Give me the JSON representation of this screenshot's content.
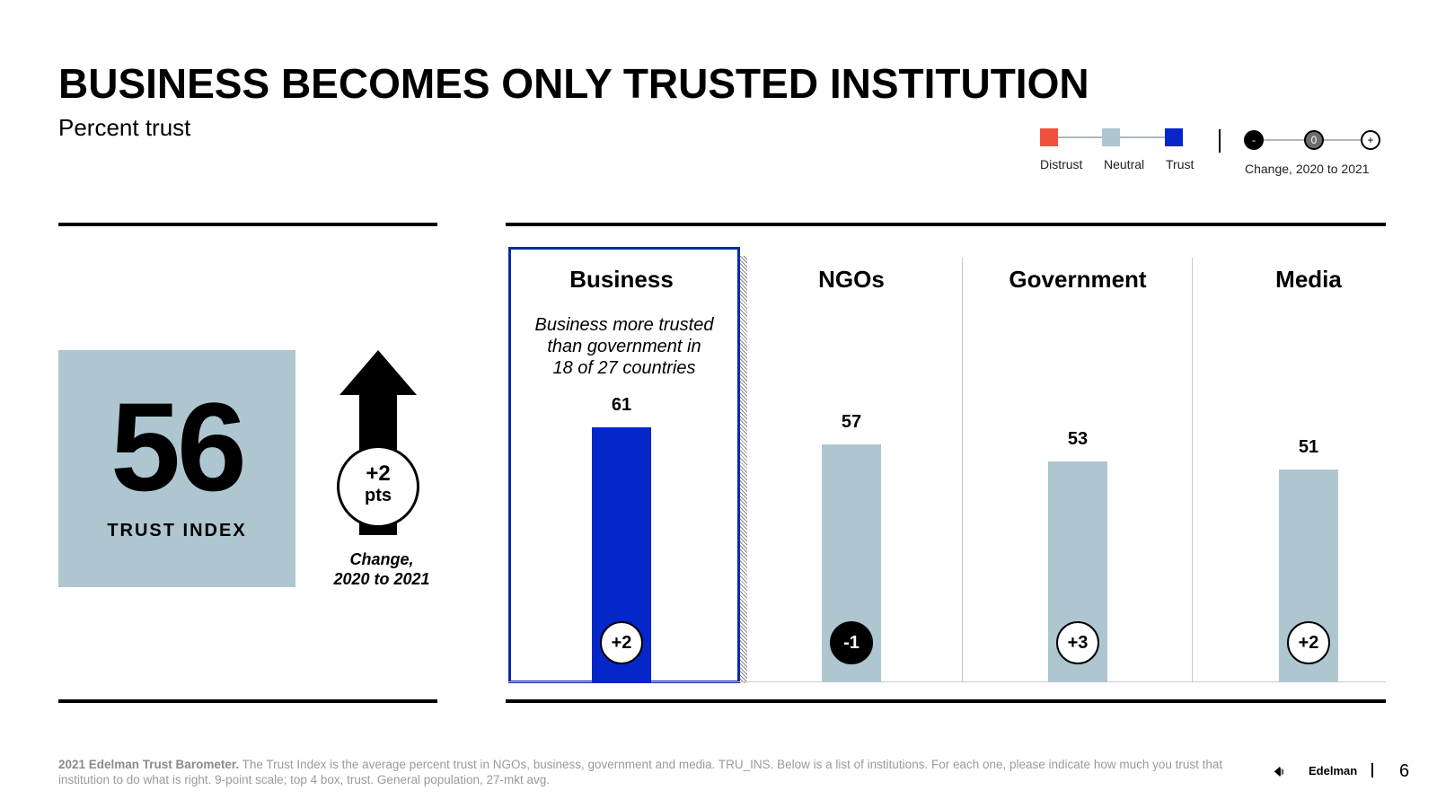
{
  "title": "BUSINESS BECOMES ONLY TRUSTED INSTITUTION",
  "subtitle": "Percent trust",
  "legend": {
    "items": [
      {
        "label": "Distrust",
        "color": "#f0503c"
      },
      {
        "label": "Neutral",
        "color": "#adc6d0"
      },
      {
        "label": "Trust",
        "color": "#0526c8"
      }
    ],
    "change_symbols": [
      "-",
      "0",
      "+"
    ],
    "change_label": "Change, 2020 to 2021"
  },
  "trust_index": {
    "value": "56",
    "label": "TRUST INDEX",
    "change_value": "+2",
    "change_unit": "pts",
    "change_caption_line1": "Change,",
    "change_caption_line2": "2020 to 2021"
  },
  "annotation": {
    "line1": "Business more trusted",
    "line2": "than government in",
    "line3": "18 of 27 countries"
  },
  "chart_data": {
    "type": "bar",
    "categories": [
      "Business",
      "NGOs",
      "Government",
      "Media"
    ],
    "values": [
      61,
      57,
      53,
      51
    ],
    "changes": [
      "+2",
      "-1",
      "+3",
      "+2"
    ],
    "bar_colors": [
      "#0526c8",
      "#adc6d0",
      "#adc6d0",
      "#adc6d0"
    ],
    "change_styles": [
      "positive",
      "negative",
      "positive",
      "positive"
    ],
    "ylim": [
      0,
      100
    ]
  },
  "footer": {
    "source_bold": "2021 Edelman Trust Barometer.",
    "source_text": " The Trust Index is the average percent trust in NGOs, business, government and media. TRU_INS. Below is a list of institutions. For each one, please indicate how much you trust that institution to do what is right. 9-point scale; top 4 box, trust. General population, 27-mkt avg.",
    "logo_text": "Edelman",
    "page_number": "6"
  }
}
